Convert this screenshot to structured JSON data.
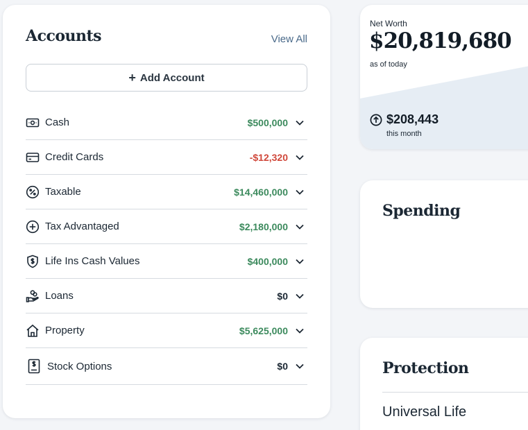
{
  "accounts": {
    "title": "Accounts",
    "view_all": "View All",
    "add_button": "Add Account",
    "rows": [
      {
        "label": "Cash",
        "amount": "$500,000",
        "tone": "pos",
        "icon": "cash-icon"
      },
      {
        "label": "Credit Cards",
        "amount": "-$12,320",
        "tone": "neg",
        "icon": "credit-card-icon"
      },
      {
        "label": "Taxable",
        "amount": "$14,460,000",
        "tone": "pos",
        "icon": "percent-icon"
      },
      {
        "label": "Tax Advantaged",
        "amount": "$2,180,000",
        "tone": "pos",
        "icon": "plus-circle-icon"
      },
      {
        "label": "Life Ins Cash Values",
        "amount": "$400,000",
        "tone": "pos",
        "icon": "shield-dollar-icon"
      },
      {
        "label": "Loans",
        "amount": "$0",
        "tone": "zero",
        "icon": "hand-coins-icon"
      },
      {
        "label": "Property",
        "amount": "$5,625,000",
        "tone": "pos",
        "icon": "house-icon"
      },
      {
        "label": "Stock Options",
        "amount": "$0",
        "tone": "zero",
        "icon": "document-dollar-icon"
      }
    ]
  },
  "net_worth": {
    "label": "Net Worth",
    "value": "$20,819,680",
    "as_of": "as of today",
    "change": "$208,443",
    "change_period": "this month"
  },
  "spending": {
    "title": "Spending"
  },
  "protection": {
    "title": "Protection",
    "items": [
      "Universal Life"
    ]
  },
  "colors": {
    "positive": "#3c8a5d",
    "negative": "#d0473a",
    "area": "#e6edf4"
  }
}
